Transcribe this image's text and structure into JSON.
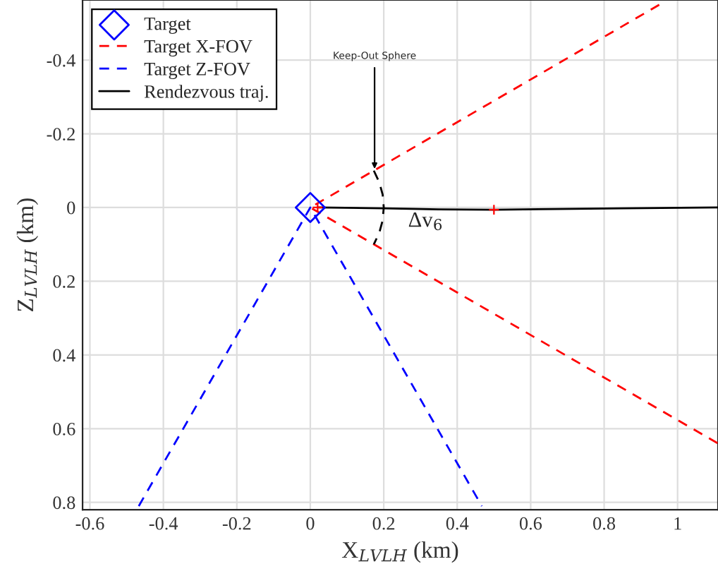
{
  "chart_data": {
    "type": "line",
    "xlabel": "X$_{LVLH}$ (km)",
    "ylabel": "Z$_{LVLH}$ (km)",
    "xlim": [
      -0.62,
      1.11
    ],
    "ylim": [
      0.82,
      -0.563
    ],
    "xticks": [
      -0.6,
      -0.4,
      -0.2,
      0,
      0.2,
      0.4,
      0.6,
      0.8,
      1
    ],
    "yticks": [
      -0.4,
      -0.2,
      0,
      0.2,
      0.4,
      0.6,
      0.8
    ],
    "grid": true,
    "legend": "top left",
    "series": [
      {
        "name": "Target",
        "type": "scatter",
        "marker": "diamond",
        "color": "#0000ff",
        "x": [
          0
        ],
        "values": [
          0
        ]
      },
      {
        "name": "Target X-FOV",
        "line_style": "dashed",
        "color": "#ff0000",
        "x": [
          0.95,
          0,
          1.11
        ],
        "values": [
          -0.55,
          0,
          0.64
        ]
      },
      {
        "name": "Target Z-FOV",
        "line_style": "dashed",
        "color": "#0000ff",
        "x": [
          -0.467,
          0,
          0.467
        ],
        "values": [
          0.81,
          0,
          0.81
        ]
      },
      {
        "name": "Rendezvous traj.",
        "line_style": "solid",
        "color": "#000000",
        "x": [
          0.02,
          0.2,
          0.35,
          0.5,
          0.67,
          0.85,
          1.11
        ],
        "values": [
          0,
          0.002,
          0.005,
          0.006,
          0.004,
          0.002,
          0
        ]
      },
      {
        "line_style": "dashed",
        "color": "#000000",
        "x": [
          0.173,
          0.188,
          0.197,
          0.2,
          0.197,
          0.188,
          0.173
        ],
        "values": [
          -0.1,
          -0.068,
          -0.035,
          0,
          0.035,
          0.068,
          0.1
        ]
      },
      {
        "type": "scatter",
        "marker": "cross",
        "color": "#ff0000",
        "x": [
          0.02,
          0.5
        ],
        "values": [
          0,
          0.006
        ]
      }
    ],
    "annotations": [
      {
        "text": "Keep-Out Sphere",
        "x": 0.175,
        "y": -0.105
      },
      "Δv$_{6}$"
    ]
  }
}
